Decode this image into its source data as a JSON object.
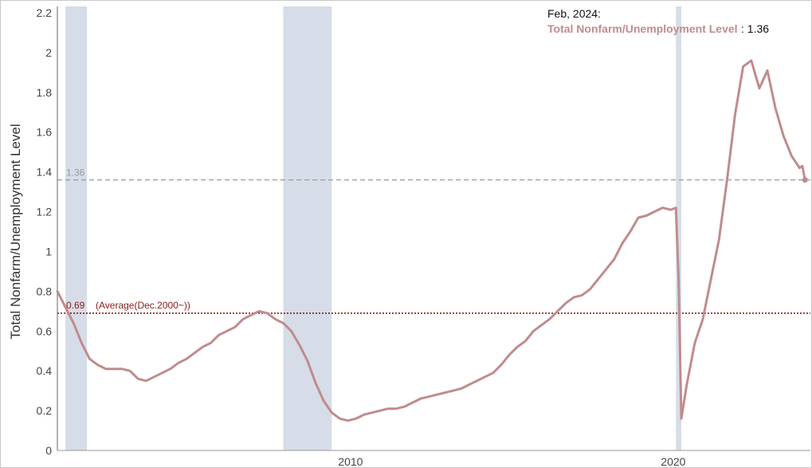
{
  "chart_data": {
    "type": "line",
    "ylabel": "Total Nonfarm/Unemployment Level",
    "ylim": [
      0,
      2.2
    ],
    "xlim": [
      "2000-12",
      "2024-04"
    ],
    "y_ticks": [
      "0",
      "0.2",
      "0.4",
      "0.6",
      "0.8",
      "1",
      "1.2",
      "1.4",
      "1.6",
      "1.8",
      "2",
      "2.2"
    ],
    "x_ticks": [
      {
        "label": "2010",
        "date": "2010-01"
      },
      {
        "label": "2020",
        "date": "2020-01"
      }
    ],
    "recessions": [
      {
        "start": "2001-03",
        "end": "2001-11"
      },
      {
        "start": "2007-12",
        "end": "2009-06"
      },
      {
        "start": "2020-02",
        "end": "2020-04"
      }
    ],
    "reference_lines": {
      "latest": {
        "value": 1.36,
        "label": "1.36",
        "color": "#999999"
      },
      "average": {
        "value": 0.69,
        "label": "0.69",
        "note": "(Average(Dec.2000~))",
        "color": "#8b1a1a"
      }
    },
    "hover": {
      "date": "Feb, 2024:",
      "series": "Total Nonfarm/Unemployment Level",
      "value": "1.36"
    },
    "series": [
      {
        "color": "#c08c8c",
        "points": [
          [
            "2000-12",
            0.8
          ],
          [
            "2001-03",
            0.72
          ],
          [
            "2001-06",
            0.64
          ],
          [
            "2001-09",
            0.54
          ],
          [
            "2001-12",
            0.46
          ],
          [
            "2002-03",
            0.43
          ],
          [
            "2002-06",
            0.41
          ],
          [
            "2002-09",
            0.41
          ],
          [
            "2002-12",
            0.41
          ],
          [
            "2003-03",
            0.4
          ],
          [
            "2003-06",
            0.36
          ],
          [
            "2003-09",
            0.35
          ],
          [
            "2003-12",
            0.37
          ],
          [
            "2004-03",
            0.39
          ],
          [
            "2004-06",
            0.41
          ],
          [
            "2004-09",
            0.44
          ],
          [
            "2004-12",
            0.46
          ],
          [
            "2005-03",
            0.49
          ],
          [
            "2005-06",
            0.52
          ],
          [
            "2005-09",
            0.54
          ],
          [
            "2005-12",
            0.58
          ],
          [
            "2006-03",
            0.6
          ],
          [
            "2006-06",
            0.62
          ],
          [
            "2006-09",
            0.66
          ],
          [
            "2006-12",
            0.68
          ],
          [
            "2007-03",
            0.7
          ],
          [
            "2007-06",
            0.69
          ],
          [
            "2007-09",
            0.66
          ],
          [
            "2007-12",
            0.64
          ],
          [
            "2008-03",
            0.6
          ],
          [
            "2008-06",
            0.53
          ],
          [
            "2008-09",
            0.45
          ],
          [
            "2008-12",
            0.34
          ],
          [
            "2009-03",
            0.25
          ],
          [
            "2009-06",
            0.19
          ],
          [
            "2009-09",
            0.16
          ],
          [
            "2009-12",
            0.15
          ],
          [
            "2010-03",
            0.16
          ],
          [
            "2010-06",
            0.18
          ],
          [
            "2010-09",
            0.19
          ],
          [
            "2010-12",
            0.2
          ],
          [
            "2011-03",
            0.21
          ],
          [
            "2011-06",
            0.21
          ],
          [
            "2011-09",
            0.22
          ],
          [
            "2011-12",
            0.24
          ],
          [
            "2012-03",
            0.26
          ],
          [
            "2012-06",
            0.27
          ],
          [
            "2012-09",
            0.28
          ],
          [
            "2012-12",
            0.29
          ],
          [
            "2013-03",
            0.3
          ],
          [
            "2013-06",
            0.31
          ],
          [
            "2013-09",
            0.33
          ],
          [
            "2013-12",
            0.35
          ],
          [
            "2014-03",
            0.37
          ],
          [
            "2014-06",
            0.39
          ],
          [
            "2014-09",
            0.43
          ],
          [
            "2014-12",
            0.48
          ],
          [
            "2015-03",
            0.52
          ],
          [
            "2015-06",
            0.55
          ],
          [
            "2015-09",
            0.6
          ],
          [
            "2015-12",
            0.63
          ],
          [
            "2016-03",
            0.66
          ],
          [
            "2016-06",
            0.7
          ],
          [
            "2016-09",
            0.74
          ],
          [
            "2016-12",
            0.77
          ],
          [
            "2017-03",
            0.78
          ],
          [
            "2017-06",
            0.81
          ],
          [
            "2017-09",
            0.86
          ],
          [
            "2017-12",
            0.91
          ],
          [
            "2018-03",
            0.96
          ],
          [
            "2018-06",
            1.04
          ],
          [
            "2018-09",
            1.1
          ],
          [
            "2018-12",
            1.17
          ],
          [
            "2019-03",
            1.18
          ],
          [
            "2019-06",
            1.2
          ],
          [
            "2019-09",
            1.22
          ],
          [
            "2019-12",
            1.21
          ],
          [
            "2020-02",
            1.22
          ],
          [
            "2020-03",
            0.86
          ],
          [
            "2020-04",
            0.16
          ],
          [
            "2020-06",
            0.33
          ],
          [
            "2020-09",
            0.54
          ],
          [
            "2020-12",
            0.66
          ],
          [
            "2021-03",
            0.86
          ],
          [
            "2021-06",
            1.06
          ],
          [
            "2021-09",
            1.36
          ],
          [
            "2021-12",
            1.69
          ],
          [
            "2022-03",
            1.93
          ],
          [
            "2022-06",
            1.96
          ],
          [
            "2022-09",
            1.82
          ],
          [
            "2022-12",
            1.91
          ],
          [
            "2023-03",
            1.72
          ],
          [
            "2023-06",
            1.58
          ],
          [
            "2023-09",
            1.48
          ],
          [
            "2023-12",
            1.42
          ],
          [
            "2024-01",
            1.43
          ],
          [
            "2024-02",
            1.36
          ]
        ]
      }
    ]
  }
}
